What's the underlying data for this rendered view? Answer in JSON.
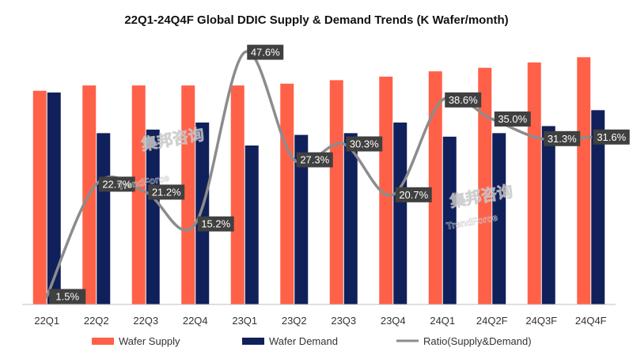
{
  "chart_data": {
    "type": "bar",
    "title": "22Q1-24Q4F Global DDIC Supply & Demand Trends (K Wafer/month)",
    "categories": [
      "22Q1",
      "22Q2",
      "22Q3",
      "22Q4",
      "23Q1",
      "23Q2",
      "23Q3",
      "23Q4",
      "24Q1",
      "24Q2F",
      "24Q3F",
      "24Q4F"
    ],
    "series": [
      {
        "name": "Wafer Supply",
        "type": "bar",
        "color": "#ff6148",
        "values": [
          1105,
          1120,
          1120,
          1120,
          1120,
          1125,
          1135,
          1145,
          1160,
          1170,
          1185,
          1200
        ]
      },
      {
        "name": "Wafer Demand",
        "type": "bar",
        "color": "#10205a",
        "values": [
          1100,
          985,
          995,
          1015,
          950,
          980,
          985,
          1015,
          975,
          985,
          1005,
          1050
        ]
      },
      {
        "name": "Ratio(Supply&Demand)",
        "type": "line",
        "color": "#8c8c8c",
        "values": [
          1.5,
          22.7,
          21.2,
          15.2,
          47.6,
          27.3,
          30.3,
          20.7,
          38.6,
          35.0,
          31.3,
          31.6
        ],
        "labels": [
          "1.5%",
          "22.7%",
          "21.2%",
          "15.2%",
          "47.6%",
          "27.3%",
          "30.3%",
          "20.7%",
          "38.6%",
          "35.0%",
          "31.3%",
          "31.6%"
        ]
      }
    ],
    "ylim_bars": [
      500,
      1250
    ],
    "ylim_ratio": [
      0,
      50
    ],
    "legend_position": "bottom",
    "watermark": [
      "集邦咨询",
      "TrendForce"
    ]
  }
}
